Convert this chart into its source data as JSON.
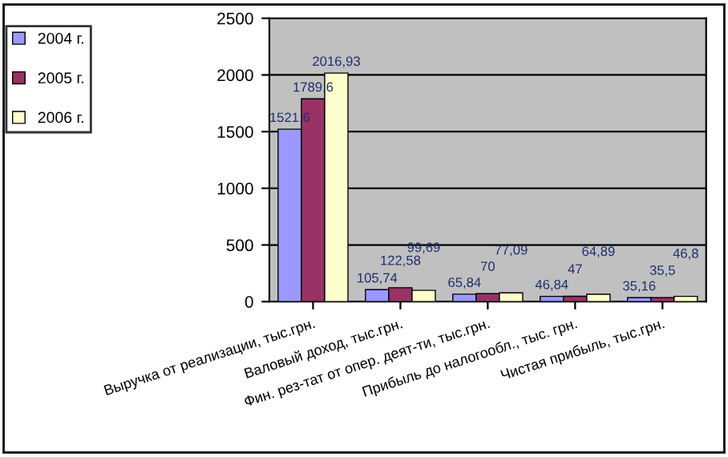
{
  "chart_data": {
    "type": "bar",
    "categories": [
      "Выручка от реализации, тыс.грн.",
      "Валовый доход, тыс.грн.",
      "Фин. рез-тат от опер. деят-ти, тыс.грн.",
      "Прибыль до налогообл., тыс. грн.",
      "Чистая прибыль, тыс.грн."
    ],
    "series": [
      {
        "name": "2004 г.",
        "color": "#9999ff",
        "values": [
          1521.6,
          105.74,
          65.84,
          46.84,
          35.16
        ],
        "value_labels": [
          "1521,6",
          "105,74",
          "65,84",
          "46,84",
          "35,16"
        ]
      },
      {
        "name": "2005 г.",
        "color": "#993366",
        "values": [
          1789.6,
          122.58,
          70,
          47,
          35.5
        ],
        "value_labels": [
          "1789,6",
          "122,58",
          "70",
          "47",
          "35,5"
        ]
      },
      {
        "name": "2006 г.",
        "color": "#ffffcc",
        "values": [
          2016.93,
          99.69,
          77.09,
          64.89,
          46.8
        ],
        "value_labels": [
          "2016,93",
          "99,69",
          "77,09",
          "64,89",
          "46,8"
        ]
      }
    ],
    "ylim": [
      0,
      2500
    ],
    "yticks": [
      0,
      500,
      1000,
      1500,
      2000,
      2500
    ],
    "grid": "y",
    "legend": "left"
  }
}
